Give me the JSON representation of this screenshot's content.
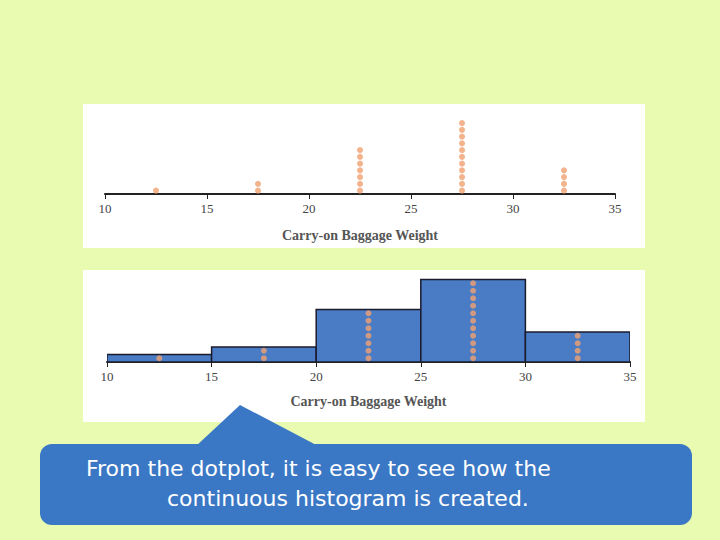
{
  "chart_data": [
    {
      "type": "dotplot",
      "x_label": "Carry-on Baggage Weight",
      "x": [
        12.5,
        17.5,
        22.5,
        27.5,
        32.5
      ],
      "counts": [
        1,
        2,
        7,
        11,
        4
      ],
      "color": "#f0a070",
      "xlim": [
        10,
        35
      ],
      "xticks": [
        10,
        15,
        20,
        25,
        30,
        35
      ],
      "ylim": [
        0,
        12
      ],
      "grid": false,
      "tick_labels": "x"
    },
    {
      "type": "histogram",
      "x_label": "Carry-on Baggage Weight",
      "bins": [
        10,
        15,
        20,
        25,
        30,
        35
      ],
      "counts": [
        1,
        2,
        7,
        11,
        4
      ],
      "color": "#4a7cc6",
      "xlim": [
        10,
        35
      ],
      "xticks": [
        10,
        15,
        20,
        25,
        30,
        35
      ],
      "ylim": [
        0,
        12
      ],
      "grid": false,
      "tick_labels": "x"
    }
  ],
  "callout": [
    "From the dotplot, it is easy to see how the",
    "continuous histogram is created."
  ]
}
